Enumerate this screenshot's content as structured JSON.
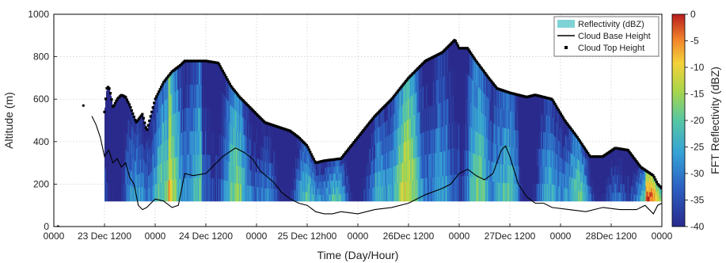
{
  "chart_data": {
    "type": "heatmap",
    "title": "",
    "xlabel": "Time (Day/Hour)",
    "ylabel": "Altitude (m)",
    "colorbar_label": "FFT Reflectivity (dBZ)",
    "x_range_hours": [
      0,
      144
    ],
    "x_ticks": [
      {
        "hour": 0,
        "label": "0000"
      },
      {
        "hour": 12,
        "label": "23 Dec 1200"
      },
      {
        "hour": 24,
        "label": "0000"
      },
      {
        "hour": 36,
        "label": "24 Dec 1200"
      },
      {
        "hour": 48,
        "label": "0000"
      },
      {
        "hour": 60,
        "label": "25 Dec 12h00"
      },
      {
        "hour": 72,
        "label": "0000"
      },
      {
        "hour": 84,
        "label": "26Dec 1200"
      },
      {
        "hour": 96,
        "label": "0000"
      },
      {
        "hour": 108,
        "label": "27Dec 1200"
      },
      {
        "hour": 120,
        "label": "0000"
      },
      {
        "hour": 132,
        "label": "28Dec 1200"
      },
      {
        "hour": 144,
        "label": "0000"
      }
    ],
    "y_range": [
      0,
      1000
    ],
    "y_ticks": [
      "0",
      "200",
      "400",
      "600",
      "800",
      "1000"
    ],
    "color_range": [
      -40,
      0
    ],
    "colorbar_ticks": [
      "0",
      "-5",
      "-10",
      "-15",
      "-20",
      "-25",
      "-30",
      "-35",
      "-40"
    ],
    "grid": true,
    "legend_position": "top-right",
    "legend": [
      {
        "label": "Reflectivity (dBZ)",
        "symbol": "patch",
        "color": "#7fd3d6"
      },
      {
        "label": "Cloud Base Height",
        "symbol": "line",
        "color": "#000000"
      },
      {
        "label": "Cloud Top Height",
        "symbol": "marker",
        "color": "#000000"
      }
    ],
    "echo_bottom_altitude": 120,
    "cloud_top_height": {
      "x": [
        12,
        12.5,
        13,
        13.5,
        14,
        15,
        16,
        17,
        18,
        19.5,
        21,
        22,
        24,
        26,
        28,
        30,
        31,
        33,
        36,
        39,
        42,
        44,
        46,
        48,
        50,
        53,
        56,
        58,
        60,
        62,
        64,
        68,
        72,
        76,
        80,
        84,
        88,
        92,
        94,
        95,
        96,
        98,
        100,
        103,
        105,
        108,
        110,
        112,
        114,
        118,
        121,
        124,
        127,
        130,
        133,
        136,
        139,
        142,
        143,
        144
      ],
      "y": [
        540,
        650,
        660,
        620,
        560,
        600,
        620,
        610,
        570,
        490,
        530,
        450,
        600,
        680,
        730,
        760,
        780,
        780,
        780,
        770,
        660,
        610,
        570,
        530,
        490,
        470,
        450,
        420,
        380,
        300,
        310,
        320,
        420,
        520,
        600,
        700,
        780,
        820,
        860,
        880,
        840,
        840,
        780,
        700,
        650,
        630,
        620,
        610,
        620,
        600,
        500,
        420,
        330,
        330,
        370,
        360,
        280,
        240,
        200,
        180
      ]
    },
    "cloud_base_height": {
      "x": [
        9,
        10,
        11,
        12,
        13,
        14,
        15,
        16,
        17,
        18,
        19,
        20,
        21,
        22,
        24,
        26,
        28,
        29.5,
        31,
        33,
        36,
        40,
        43,
        45,
        47,
        49,
        52,
        54,
        56,
        58,
        60,
        62,
        64,
        66,
        68,
        72,
        76,
        80,
        84,
        88,
        92,
        94,
        96,
        98,
        100,
        102,
        104,
        106,
        107,
        108,
        110,
        112,
        114,
        116,
        118,
        122,
        126,
        130,
        134,
        138,
        140,
        142,
        143,
        144
      ],
      "y": [
        520,
        480,
        420,
        330,
        360,
        300,
        320,
        280,
        300,
        230,
        200,
        100,
        80,
        90,
        130,
        120,
        90,
        100,
        250,
        240,
        250,
        330,
        370,
        350,
        320,
        260,
        210,
        160,
        130,
        110,
        100,
        70,
        60,
        60,
        70,
        60,
        80,
        90,
        110,
        150,
        180,
        200,
        250,
        270,
        240,
        220,
        250,
        360,
        380,
        330,
        200,
        140,
        110,
        110,
        90,
        80,
        70,
        90,
        80,
        80,
        100,
        60,
        100,
        110
      ]
    },
    "stray_points": [
      {
        "x": 7,
        "y": 570
      },
      {
        "x": 1,
        "y": 0
      }
    ]
  }
}
